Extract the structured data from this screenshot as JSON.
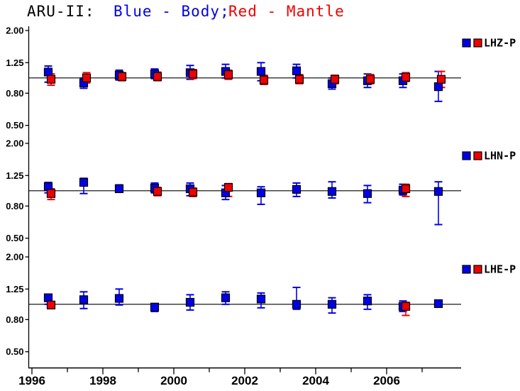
{
  "title": {
    "station": "ARU-II:",
    "body_label": "Blue - Body;",
    "mantle_label": "Red - Mantle"
  },
  "colors": {
    "body": "#0000e8",
    "mantle": "#ee0000",
    "axis": "#000000",
    "background": "#ffffff"
  },
  "x_axis": {
    "range": [
      1995.9,
      2008.1
    ],
    "tick_years": [
      1996,
      1997,
      1998,
      1999,
      2000,
      2001,
      2002,
      2003,
      2004,
      2005,
      2006,
      2007
    ],
    "labeled_years": [
      "1996",
      "1998",
      "2000",
      "2002",
      "2004",
      "2006"
    ],
    "grid": false
  },
  "y_axis": {
    "scale": "log",
    "range": [
      0.45,
      2.1
    ],
    "ticks": [
      {
        "value": 2.0,
        "label": "2.00"
      },
      {
        "value": 1.25,
        "label": "1.25"
      },
      {
        "value": 0.8,
        "label": "0.80"
      },
      {
        "value": 0.5,
        "label": "0.50"
      }
    ],
    "reference_value": 1.0
  },
  "chart_data": [
    {
      "type": "scatter",
      "panel_label": "LHZ-P",
      "legend_position": "right",
      "series": [
        {
          "name": "Body",
          "color_key": "body",
          "x": [
            1996.5,
            1997.5,
            1998.5,
            1999.5,
            2000.5,
            2001.5,
            2002.5,
            2003.5,
            2004.5,
            2005.5,
            2006.5,
            2007.5
          ],
          "y": [
            1.09,
            0.93,
            1.04,
            1.06,
            1.08,
            1.1,
            1.1,
            1.11,
            0.92,
            0.96,
            0.96,
            0.88
          ],
          "err_lo": [
            0.94,
            0.86,
            0.97,
            0.99,
            0.98,
            1.0,
            0.96,
            1.0,
            0.85,
            0.87,
            0.87,
            0.71
          ],
          "err_hi": [
            1.19,
            1.0,
            1.12,
            1.14,
            1.2,
            1.22,
            1.25,
            1.22,
            1.0,
            1.06,
            1.06,
            1.1
          ]
        },
        {
          "name": "Mantle",
          "color_key": "mantle",
          "x": [
            1996.5,
            1997.5,
            1998.5,
            1999.5,
            2000.5,
            2001.5,
            2002.5,
            2003.5,
            2004.5,
            2005.5,
            2006.5,
            2007.5
          ],
          "y": [
            0.98,
            1.0,
            1.02,
            1.02,
            1.06,
            1.05,
            0.97,
            0.98,
            0.98,
            0.98,
            1.01,
            0.98
          ],
          "err_lo": [
            0.9,
            0.93,
            0.96,
            0.96,
            0.99,
            0.98,
            0.91,
            0.92,
            0.92,
            0.92,
            0.95,
            0.87
          ],
          "err_hi": [
            1.06,
            1.08,
            1.08,
            1.09,
            1.13,
            1.12,
            1.04,
            1.05,
            1.04,
            1.05,
            1.08,
            1.1
          ]
        }
      ]
    },
    {
      "type": "scatter",
      "panel_label": "LHN-P",
      "legend_position": "right",
      "series": [
        {
          "name": "Body",
          "color_key": "body",
          "x": [
            1996.5,
            1997.5,
            1998.5,
            1999.5,
            2000.5,
            2001.5,
            2002.5,
            2003.5,
            2004.5,
            2005.5,
            2006.5,
            2007.5
          ],
          "y": [
            1.06,
            1.13,
            1.03,
            1.04,
            1.03,
            0.97,
            0.97,
            1.02,
            0.99,
            0.96,
            1.01,
            0.99
          ],
          "err_lo": [
            0.97,
            0.96,
            0.98,
            0.97,
            0.93,
            0.88,
            0.82,
            0.92,
            0.9,
            0.84,
            0.94,
            0.61
          ],
          "err_hi": [
            1.13,
            1.2,
            1.09,
            1.12,
            1.12,
            1.08,
            1.06,
            1.12,
            1.14,
            1.08,
            1.1,
            1.14
          ]
        },
        {
          "name": "Mantle",
          "color_key": "mantle",
          "x": [
            1996.5,
            1999.5,
            2000.5,
            2001.5,
            2006.5
          ],
          "y": [
            0.96,
            0.99,
            0.98,
            1.05,
            1.03
          ],
          "err_lo": [
            0.88,
            0.93,
            0.92,
            0.92,
            0.92
          ],
          "err_hi": [
            1.03,
            1.05,
            1.04,
            1.11,
            1.1
          ]
        }
      ]
    },
    {
      "type": "scatter",
      "panel_label": "LHE-P",
      "legend_position": "right",
      "series": [
        {
          "name": "Body",
          "color_key": "body",
          "x": [
            1996.5,
            1997.5,
            1998.5,
            1999.5,
            2000.5,
            2001.5,
            2002.5,
            2003.5,
            2004.5,
            2005.5,
            2006.5,
            2007.5
          ],
          "y": [
            1.1,
            1.07,
            1.09,
            0.96,
            1.03,
            1.1,
            1.08,
            1.0,
            1.0,
            1.05,
            0.97,
            1.01
          ],
          "err_lo": [
            1.0,
            0.94,
            0.99,
            0.9,
            0.92,
            1.0,
            0.95,
            0.93,
            0.88,
            0.93,
            0.9,
            0.98
          ],
          "err_hi": [
            1.16,
            1.2,
            1.25,
            1.01,
            1.15,
            1.2,
            1.18,
            1.28,
            1.1,
            1.15,
            1.05,
            1.04
          ]
        },
        {
          "name": "Mantle",
          "color_key": "mantle",
          "x": [
            1996.5,
            2006.5
          ],
          "y": [
            0.99,
            0.97
          ],
          "err_lo": [
            0.94,
            0.85
          ],
          "err_hi": [
            1.04,
            1.03
          ]
        }
      ]
    }
  ]
}
